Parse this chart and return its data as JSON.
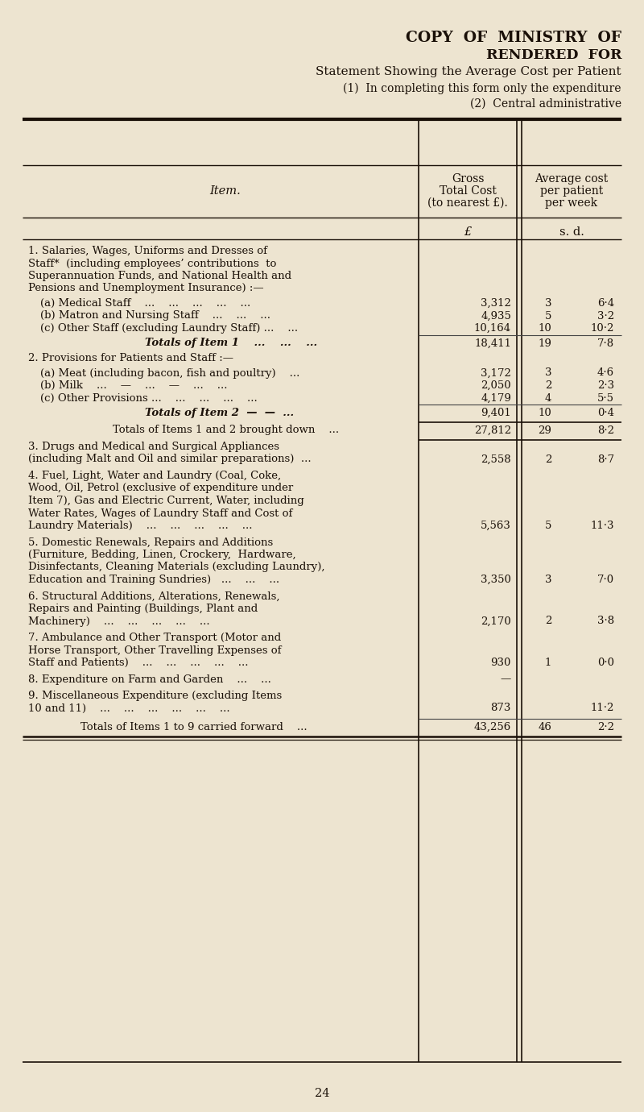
{
  "bg_color": "#ede4d0",
  "text_color": "#1a1008",
  "title1": "COPY  OF  MINISTRY  OF",
  "title2": "RENDERED  FOR",
  "title3": "Statement Showing the Average Cost per Patient",
  "subtitle1": "(1)  In completing this form only the expenditure",
  "subtitle2": "(2)  Central administrative",
  "col_header_item": "Item.",
  "col_header_gross1": "Gross",
  "col_header_gross2": "Total Cost",
  "col_header_gross3": "(to nearest £).",
  "col_header_avg1": "Average cost",
  "col_header_avg2": "per patient",
  "col_header_avg3": "per week",
  "pound_label": "£",
  "sd_label": "s. d.",
  "footer_page": "24",
  "rows": [
    {
      "type": "section_header",
      "lines": [
        "1. Salaries, Wages, Uniforms and Dresses of",
        "Staff*  (including employees’ contributions  to",
        "Superannuation Funds, and National Health and",
        "Pensions and Unemployment Insurance) :—"
      ]
    },
    {
      "type": "sub_item",
      "label": "(a) Medical Staff    ...    ...    ...    ...    ...",
      "gross": "3,312",
      "avg_s": "3",
      "avg_d": "6·4"
    },
    {
      "type": "sub_item",
      "label": "(b) Matron and Nursing Staff    ...    ...    ...",
      "gross": "4,935",
      "avg_s": "5",
      "avg_d": "3·2"
    },
    {
      "type": "sub_item",
      "label": "(c) Other Staff (excluding Laundry Staff) ...    ...",
      "gross": "10,164",
      "avg_s": "10",
      "avg_d": "10·2"
    },
    {
      "type": "subtotal",
      "label": "Totals of Item 1    ...    ...    ...",
      "gross": "18,411",
      "avg_s": "19",
      "avg_d": "7·8"
    },
    {
      "type": "section_header",
      "lines": [
        "2. Provisions for Patients and Staff :—"
      ]
    },
    {
      "type": "sub_item",
      "label": "(a) Meat (including bacon, fish and poultry)    ...",
      "gross": "3,172",
      "avg_s": "3",
      "avg_d": "4·6"
    },
    {
      "type": "sub_item",
      "label": "(b) Milk    ...    —    ...    —    ...    ...",
      "gross": "2,050",
      "avg_s": "2",
      "avg_d": "2·3"
    },
    {
      "type": "sub_item",
      "label": "(c) Other Provisions ...    ...    ...    ...    ...",
      "gross": "4,179",
      "avg_s": "4",
      "avg_d": "5·5"
    },
    {
      "type": "subtotal",
      "label": "Totals of Item 2  —  —  ...",
      "gross": "9,401",
      "avg_s": "10",
      "avg_d": "0·4"
    },
    {
      "type": "brought_down",
      "label": "Totals of Items 1 and 2 brought down    ...",
      "gross": "27,812",
      "avg_s": "29",
      "avg_d": "8·2"
    },
    {
      "type": "section_item",
      "lines": [
        "3. Drugs and Medical and Surgical Appliances",
        "(including Malt and Oil and similar preparations)  ..."
      ],
      "gross": "2,558",
      "avg_s": "2",
      "avg_d": "8·7"
    },
    {
      "type": "section_item",
      "lines": [
        "4. Fuel, Light, Water and Laundry (Coal, Coke,",
        "Wood, Oil, Petrol (exclusive of expenditure under",
        "Item 7), Gas and Electric Current, Water, including",
        "Water Rates, Wages of Laundry Staff and Cost of",
        "Laundry Materials)    ...    ...    ...    ...    ..."
      ],
      "gross": "5,563",
      "avg_s": "5",
      "avg_d": "11·3"
    },
    {
      "type": "section_item",
      "lines": [
        "5. Domestic Renewals, Repairs and Additions",
        "(Furniture, Bedding, Linen, Crockery,  Hardware,",
        "Disinfectants, Cleaning Materials (excluding Laundry),",
        "Education and Training Sundries)   ...    ...    ..."
      ],
      "gross": "3,350",
      "avg_s": "3",
      "avg_d": "7·0"
    },
    {
      "type": "section_item",
      "lines": [
        "6. Structural Additions, Alterations, Renewals,",
        "Repairs and Painting (Buildings, Plant and",
        "Machinery)    ...    ...    ...    ...    ..."
      ],
      "gross": "2,170",
      "avg_s": "2",
      "avg_d": "3·8"
    },
    {
      "type": "section_item",
      "lines": [
        "7. Ambulance and Other Transport (Motor and",
        "Horse Transport, Other Travelling Expenses of",
        "Staff and Patients)    ...    ...    ...    ...    ..."
      ],
      "gross": "930",
      "avg_s": "1",
      "avg_d": "0·0"
    },
    {
      "type": "section_item_nodash",
      "lines": [
        "8. Expenditure on Farm and Garden    ...    ..."
      ],
      "gross": "—",
      "avg_s": "",
      "avg_d": ""
    },
    {
      "type": "section_item",
      "lines": [
        "9. Miscellaneous Expenditure (excluding Items",
        "10 and 11)    ...    ...    ...    ...    ...    ..."
      ],
      "gross": "873",
      "avg_s": "",
      "avg_d": "11·2"
    },
    {
      "type": "grand_total",
      "label": "Totals of Items 1 to 9 carried forward    ...",
      "gross": "43,256",
      "avg_s": "46",
      "avg_d": "2·2"
    }
  ]
}
